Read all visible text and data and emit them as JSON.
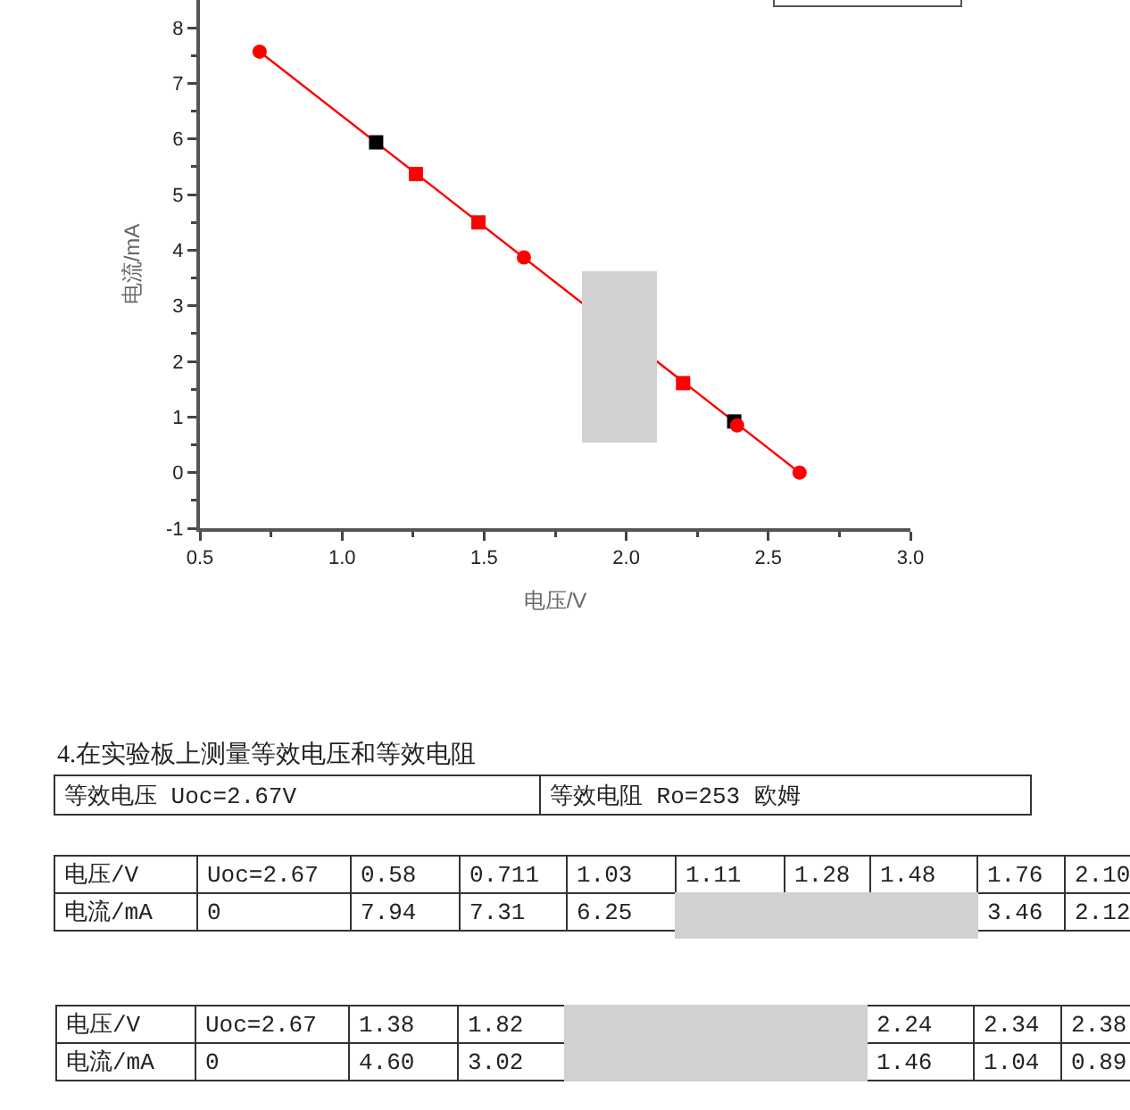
{
  "chart_data": {
    "type": "scatter",
    "xlabel": "电压/V",
    "ylabel": "电流/mA",
    "xlim": [
      0.5,
      3.0
    ],
    "ylim": [
      -1,
      8.5
    ],
    "xticks": [
      0.5,
      {
        "value": 0.75,
        "label": null
      },
      {
        "value": 1,
        "label": "1.0"
      },
      {
        "value": 1.25,
        "label": null
      },
      1.5,
      {
        "value": 1.75,
        "label": null
      },
      {
        "value": 2,
        "label": "2.0"
      },
      {
        "value": 2.25,
        "label": null
      },
      2.5,
      {
        "value": 2.75,
        "label": null
      },
      {
        "value": 3,
        "label": "3.0"
      }
    ],
    "yticks": [
      -1,
      {
        "value": -0.5,
        "label": null
      },
      0,
      {
        "value": 0.5,
        "label": null
      },
      1,
      {
        "value": 1.5,
        "label": null
      },
      2,
      {
        "value": 2.5,
        "label": null
      },
      3,
      {
        "value": 3.5,
        "label": null
      },
      4,
      {
        "value": 4.5,
        "label": null
      },
      5,
      {
        "value": 5.5,
        "label": null
      },
      6,
      {
        "value": 6.5,
        "label": null
      },
      7,
      {
        "value": 7.5,
        "label": null
      },
      8
    ],
    "series": [
      {
        "type": "line",
        "x": [
          0.71,
          2.61
        ],
        "values": [
          7.57,
          0
        ],
        "color": "#ff0000",
        "marker": "none",
        "line_style": "solid"
      },
      {
        "x": [
          1.12,
          2.38
        ],
        "values": [
          5.94,
          0.92
        ],
        "color": "#000000",
        "marker": "square"
      },
      {
        "x": [
          1.26,
          1.48,
          2.2
        ],
        "values": [
          5.37,
          4.5,
          1.61
        ],
        "color": "#ff0000",
        "marker": "square"
      },
      {
        "x": [
          0.71,
          1.64,
          2.39,
          2.61
        ],
        "values": [
          7.57,
          3.87,
          0.85,
          0
        ],
        "color": "#ff0000",
        "marker": "circle"
      }
    ],
    "annotations": [
      "4.在实验板上测量等效电压和等效电阻",
      "等效电压 Uoc=2.67V",
      "等效电阻 Ro=253 欧姆",
      "电压/V",
      "Uoc=2.67",
      "0.58",
      "0.711",
      "1.03",
      "1.11",
      "1.28",
      "1.48",
      "1.76",
      "2.10",
      "电流/mA",
      "0",
      "7.94",
      "7.31",
      "6.25",
      "3.46",
      "2.12",
      "电压/V",
      "Uoc=2.67",
      "1.38",
      "1.82",
      "2.24",
      "2.34",
      "2.38",
      "电流/mA",
      "0",
      "4.60",
      "3.02",
      "1.46",
      "1.04",
      "0.89"
    ]
  }
}
